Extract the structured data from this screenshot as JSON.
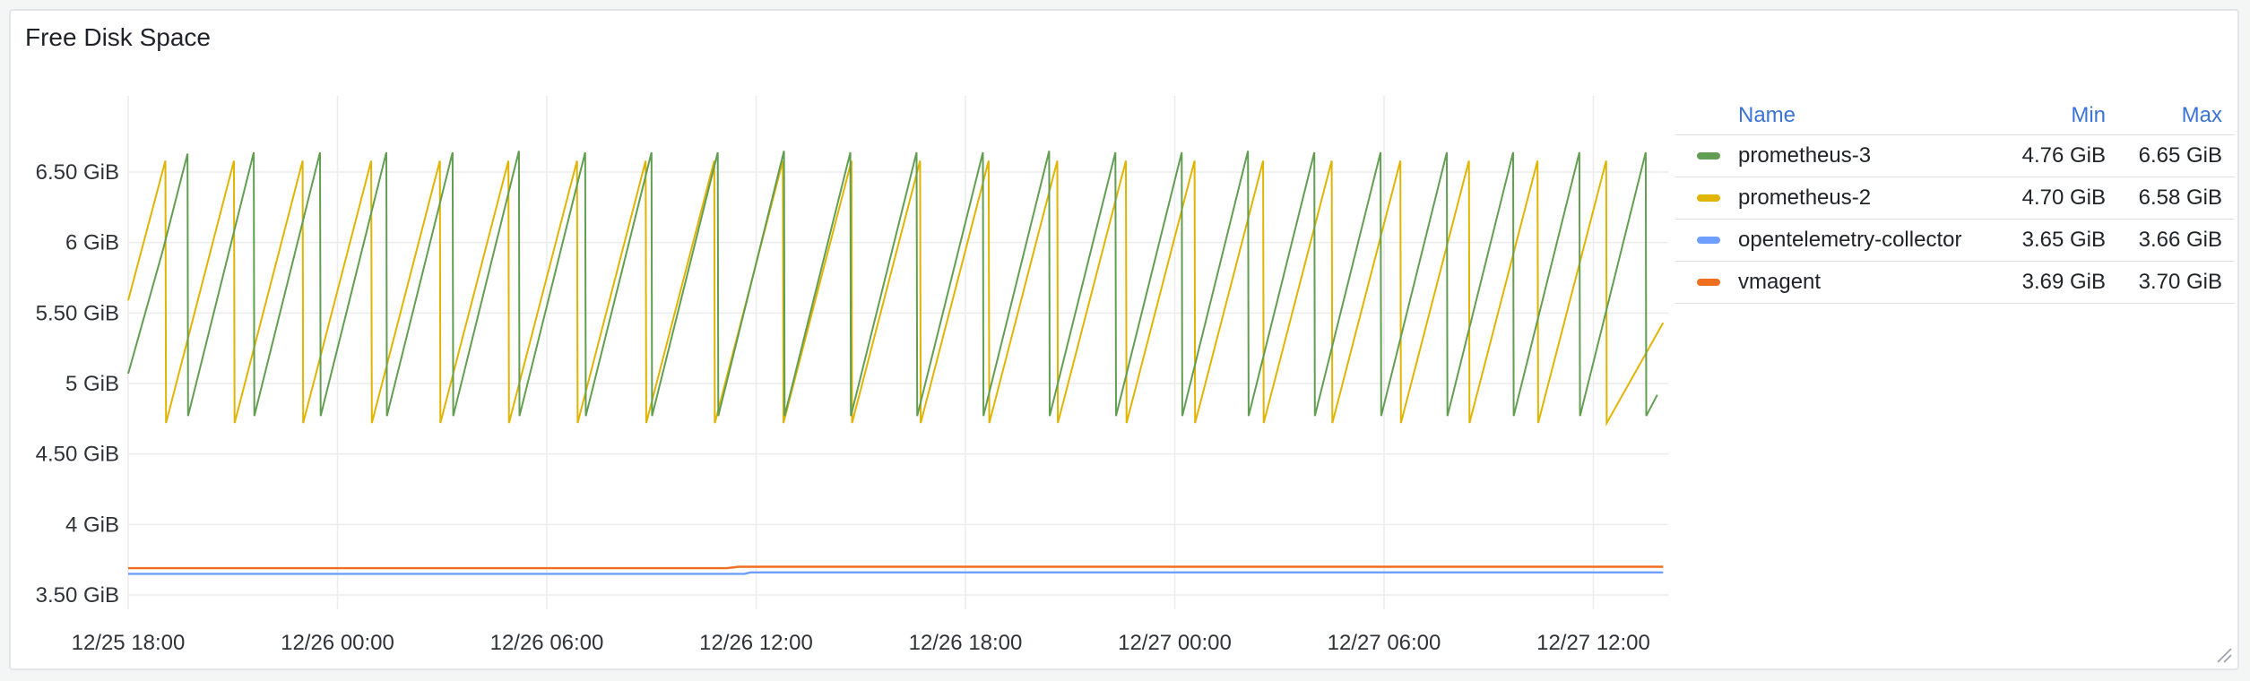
{
  "panel": {
    "title": "Free Disk Space"
  },
  "legend": {
    "headers": {
      "name": "Name",
      "min": "Min",
      "max": "Max"
    },
    "rows": [
      {
        "name": "prometheus-3",
        "min": "4.76 GiB",
        "max": "6.65 GiB",
        "color": "#629e51"
      },
      {
        "name": "prometheus-2",
        "min": "4.70 GiB",
        "max": "6.58 GiB",
        "color": "#e0b400"
      },
      {
        "name": "opentelemetry-collector",
        "min": "3.65 GiB",
        "max": "3.66 GiB",
        "color": "#6e9fff"
      },
      {
        "name": "vmagent",
        "min": "3.69 GiB",
        "max": "3.70 GiB",
        "color": "#ef6e1f"
      }
    ]
  },
  "chart_data": {
    "type": "line",
    "title": "Free Disk Space",
    "xlabel": "",
    "ylabel": "",
    "grid": true,
    "legend_position": "right",
    "xlim": [
      "12/25 18:00",
      "12/27 15:00"
    ],
    "ylim": [
      3.4,
      6.95
    ],
    "y_unit": "GiB",
    "x_ticks": [
      "12/25 18:00",
      "12/26 00:00",
      "12/26 06:00",
      "12/26 12:00",
      "12/26 18:00",
      "12/27 00:00",
      "12/27 06:00",
      "12/27 12:00"
    ],
    "y_ticks": [
      {
        "value": 3.5,
        "label": "3.50 GiB"
      },
      {
        "value": 4,
        "label": "4 GiB"
      },
      {
        "value": 4.5,
        "label": "4.50 GiB"
      },
      {
        "value": 5,
        "label": "5 GiB"
      },
      {
        "value": 5.5,
        "label": "5.50 GiB"
      },
      {
        "value": 6,
        "label": "6 GiB"
      },
      {
        "value": 6.5,
        "label": "6.50 GiB"
      }
    ],
    "series": [
      {
        "name": "prometheus-3",
        "color": "#629e51",
        "points": [
          [
            "12/25 18:00",
            5.07
          ],
          [
            "12/25 19:00",
            5.95
          ],
          [
            "12/25 19:42",
            6.63
          ],
          [
            "12/25 19:43",
            4.77
          ],
          [
            "12/25 21:36",
            6.64
          ],
          [
            "12/25 21:37",
            4.77
          ],
          [
            "12/25 23:30",
            6.64
          ],
          [
            "12/25 23:31",
            4.77
          ],
          [
            "12/26 01:24",
            6.64
          ],
          [
            "12/26 01:25",
            4.77
          ],
          [
            "12/26 03:18",
            6.64
          ],
          [
            "12/26 03:19",
            4.77
          ],
          [
            "12/26 05:12",
            6.65
          ],
          [
            "12/26 05:13",
            4.77
          ],
          [
            "12/26 07:06",
            6.64
          ],
          [
            "12/26 07:07",
            4.77
          ],
          [
            "12/26 09:00",
            6.64
          ],
          [
            "12/26 09:01",
            4.77
          ],
          [
            "12/26 10:54",
            6.64
          ],
          [
            "12/26 10:55",
            4.77
          ],
          [
            "12/26 12:48",
            6.65
          ],
          [
            "12/26 12:49",
            4.77
          ],
          [
            "12/26 14:42",
            6.64
          ],
          [
            "12/26 14:43",
            4.77
          ],
          [
            "12/26 16:36",
            6.64
          ],
          [
            "12/26 16:37",
            4.77
          ],
          [
            "12/26 18:30",
            6.64
          ],
          [
            "12/26 18:31",
            4.77
          ],
          [
            "12/26 20:24",
            6.65
          ],
          [
            "12/26 20:25",
            4.77
          ],
          [
            "12/26 22:18",
            6.64
          ],
          [
            "12/26 22:19",
            4.77
          ],
          [
            "12/27 00:12",
            6.64
          ],
          [
            "12/27 00:13",
            4.77
          ],
          [
            "12/27 02:06",
            6.65
          ],
          [
            "12/27 02:07",
            4.77
          ],
          [
            "12/27 04:00",
            6.64
          ],
          [
            "12/27 04:01",
            4.77
          ],
          [
            "12/27 05:54",
            6.64
          ],
          [
            "12/27 05:55",
            4.77
          ],
          [
            "12/27 07:48",
            6.64
          ],
          [
            "12/27 07:49",
            4.77
          ],
          [
            "12/27 09:42",
            6.64
          ],
          [
            "12/27 09:43",
            4.77
          ],
          [
            "12/27 11:36",
            6.64
          ],
          [
            "12/27 11:37",
            4.77
          ],
          [
            "12/27 13:30",
            6.64
          ],
          [
            "12/27 13:31",
            4.77
          ],
          [
            "12/27 13:50",
            4.92
          ]
        ]
      },
      {
        "name": "prometheus-2",
        "color": "#e0b400",
        "points": [
          [
            "12/25 18:00",
            5.59
          ],
          [
            "12/25 19:04",
            6.58
          ],
          [
            "12/25 19:05",
            4.72
          ],
          [
            "12/25 21:02",
            6.58
          ],
          [
            "12/25 21:03",
            4.72
          ],
          [
            "12/25 23:00",
            6.58
          ],
          [
            "12/25 23:01",
            4.72
          ],
          [
            "12/26 00:58",
            6.58
          ],
          [
            "12/26 00:59",
            4.72
          ],
          [
            "12/26 02:56",
            6.58
          ],
          [
            "12/26 02:57",
            4.72
          ],
          [
            "12/26 04:54",
            6.58
          ],
          [
            "12/26 04:55",
            4.72
          ],
          [
            "12/26 06:52",
            6.58
          ],
          [
            "12/26 06:53",
            4.72
          ],
          [
            "12/26 08:50",
            6.58
          ],
          [
            "12/26 08:51",
            4.72
          ],
          [
            "12/26 10:48",
            6.58
          ],
          [
            "12/26 10:49",
            4.72
          ],
          [
            "12/26 12:46",
            6.58
          ],
          [
            "12/26 12:47",
            4.72
          ],
          [
            "12/26 14:44",
            6.58
          ],
          [
            "12/26 14:45",
            4.72
          ],
          [
            "12/26 16:42",
            6.58
          ],
          [
            "12/26 16:43",
            4.72
          ],
          [
            "12/26 18:40",
            6.58
          ],
          [
            "12/26 18:41",
            4.72
          ],
          [
            "12/26 20:38",
            6.58
          ],
          [
            "12/26 20:39",
            4.72
          ],
          [
            "12/26 22:36",
            6.58
          ],
          [
            "12/26 22:37",
            4.72
          ],
          [
            "12/27 00:34",
            6.58
          ],
          [
            "12/27 00:35",
            4.72
          ],
          [
            "12/27 02:32",
            6.58
          ],
          [
            "12/27 02:33",
            4.72
          ],
          [
            "12/27 04:30",
            6.58
          ],
          [
            "12/27 04:31",
            4.72
          ],
          [
            "12/27 06:28",
            6.58
          ],
          [
            "12/27 06:29",
            4.72
          ],
          [
            "12/27 08:26",
            6.58
          ],
          [
            "12/27 08:27",
            4.72
          ],
          [
            "12/27 10:24",
            6.58
          ],
          [
            "12/27 10:25",
            4.72
          ],
          [
            "12/27 12:22",
            6.58
          ],
          [
            "12/27 12:23",
            4.72
          ],
          [
            "12/27 14:00",
            5.43
          ]
        ]
      },
      {
        "name": "opentelemetry-collector",
        "color": "#6e9fff",
        "points": [
          [
            "12/25 18:00",
            3.65
          ],
          [
            "12/26 11:40",
            3.65
          ],
          [
            "12/26 11:50",
            3.66
          ],
          [
            "12/27 14:00",
            3.66
          ]
        ]
      },
      {
        "name": "vmagent",
        "color": "#ef6e1f",
        "points": [
          [
            "12/25 18:00",
            3.69
          ],
          [
            "12/26 11:10",
            3.69
          ],
          [
            "12/26 11:30",
            3.7
          ],
          [
            "12/27 14:00",
            3.7
          ]
        ]
      }
    ]
  }
}
